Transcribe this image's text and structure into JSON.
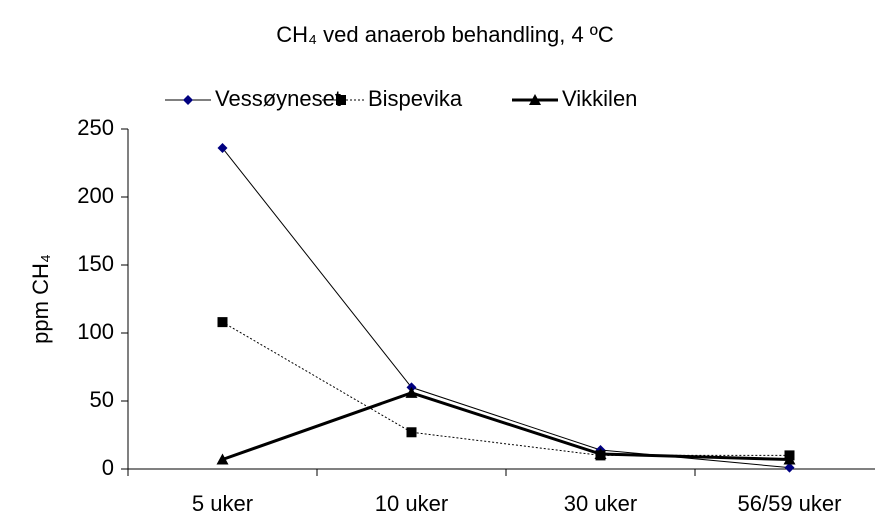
{
  "chart_data": {
    "type": "line",
    "title": "CH₄ ved anaerob behandling, 4 ºC",
    "y_label": "ppm CH₄",
    "categories": [
      "5 uker",
      "10 uker",
      "30 uker",
      "56/59 uker"
    ],
    "series": [
      {
        "name": "Vessøyneset",
        "color": "#000080",
        "line_color": "#000000",
        "marker": "diamond",
        "line_style": "solid",
        "line_width": 1,
        "values": [
          236,
          60,
          14,
          1
        ]
      },
      {
        "name": "Bispevika",
        "color": "#000000",
        "line_color": "#000000",
        "marker": "square",
        "line_style": "dotted",
        "line_width": 1,
        "values": [
          108,
          27,
          10,
          10
        ]
      },
      {
        "name": "Vikkilen",
        "color": "#000000",
        "line_color": "#000000",
        "marker": "triangle",
        "line_style": "solid",
        "line_width": 3,
        "values": [
          7,
          56,
          11,
          7
        ]
      }
    ],
    "ylim": [
      0,
      250
    ],
    "yticks": [
      0,
      50,
      100,
      150,
      200,
      250
    ],
    "grid": false,
    "legend": "top"
  }
}
